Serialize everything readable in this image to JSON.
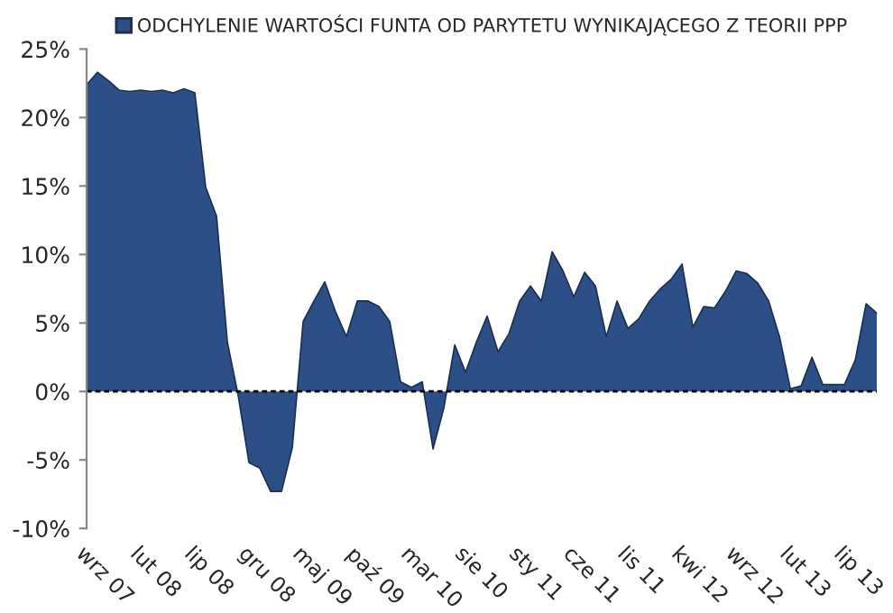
{
  "chart_data": {
    "type": "area",
    "categories": [
      "wrz 07",
      null,
      null,
      null,
      null,
      "lut 08",
      null,
      null,
      null,
      null,
      "lip 08",
      null,
      null,
      null,
      null,
      "gru 08",
      null,
      null,
      null,
      null,
      "maj 09",
      null,
      null,
      null,
      null,
      "paź 09",
      null,
      null,
      null,
      null,
      "mar 10",
      null,
      null,
      null,
      null,
      "sie 10",
      null,
      null,
      null,
      null,
      "sty 11",
      null,
      null,
      null,
      null,
      "cze 11",
      null,
      null,
      null,
      null,
      "lis 11",
      null,
      null,
      null,
      null,
      "kwi 12",
      null,
      null,
      null,
      null,
      "wrz 12",
      null,
      null,
      null,
      null,
      "lut 13",
      null,
      null,
      null,
      null,
      "lip 13",
      null,
      null,
      null
    ],
    "series": [
      {
        "name": "ODCHYLENIE WARTOŚCI FUNTA OD PARYTETU WYNIKAJĄCEGO Z TEORII PPP",
        "color": "#2b4f86",
        "values": [
          22.4,
          23.3,
          22.7,
          22.0,
          21.9,
          22.0,
          21.9,
          22.0,
          21.8,
          22.1,
          21.8,
          14.9,
          12.8,
          3.6,
          -0.3,
          -5.2,
          -5.6,
          -7.3,
          -7.3,
          -4.1,
          5.1,
          6.6,
          8.0,
          5.8,
          4.0,
          6.6,
          6.6,
          6.2,
          5.1,
          0.7,
          0.3,
          0.7,
          -4.2,
          -1.2,
          3.4,
          1.4,
          3.6,
          5.5,
          2.9,
          4.2,
          6.6,
          7.7,
          6.6,
          10.2,
          8.8,
          6.9,
          8.7,
          7.7,
          4.0,
          6.6,
          4.6,
          5.3,
          6.6,
          7.5,
          8.2,
          9.3,
          4.7,
          6.2,
          6.1,
          7.3,
          8.8,
          8.6,
          7.9,
          6.6,
          4.0,
          0.2,
          0.4,
          2.5,
          0.5,
          0.5,
          0.5,
          2.3,
          6.4,
          5.7
        ]
      }
    ],
    "ylim": [
      -10,
      25
    ],
    "yticks": [
      {
        "value": -10,
        "label": "-10%"
      },
      {
        "value": -5,
        "label": "-5%"
      },
      {
        "value": 0,
        "label": "0%"
      },
      {
        "value": 5,
        "label": "5%"
      },
      {
        "value": 10,
        "label": "10%"
      },
      {
        "value": 15,
        "label": "15%"
      },
      {
        "value": 20,
        "label": "20%"
      },
      {
        "value": 25,
        "label": "25%"
      }
    ],
    "ref_lines": [
      {
        "axis": "y",
        "value": 0,
        "color": "#000000",
        "line_style": "dashed"
      }
    ],
    "legend": "top"
  }
}
